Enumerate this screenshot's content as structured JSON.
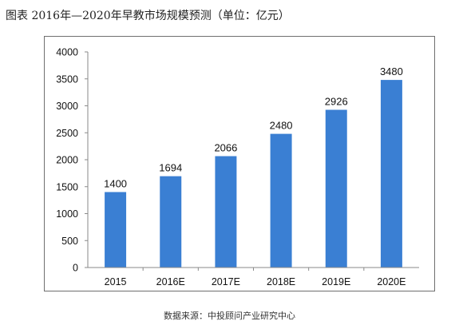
{
  "figure": {
    "title": "图表  2016年—2020年早教市场规模预测（单位：亿元）",
    "source": "数据来源：中投顾问产业研究中心"
  },
  "colors": {
    "bar": "#3a7fd3",
    "axis": "#8a8a8a",
    "text": "#111111"
  },
  "chart_data": {
    "type": "bar",
    "title": "",
    "xlabel": "",
    "ylabel": "",
    "categories": [
      "2015",
      "2016E",
      "2017E",
      "2018E",
      "2019E",
      "2020E"
    ],
    "values": [
      1400,
      1694,
      2066,
      2480,
      2926,
      3480
    ],
    "value_labels": [
      "1400",
      "1694",
      "2066",
      "2480",
      "2926",
      "3480"
    ],
    "ylim": [
      0,
      4000
    ],
    "yticks": [
      0,
      500,
      1000,
      1500,
      2000,
      2500,
      3000,
      3500,
      4000
    ],
    "ytick_labels": [
      "0",
      "500",
      "1000",
      "1500",
      "2000",
      "2500",
      "3000",
      "3500",
      "4000"
    ],
    "grid": false,
    "legend": "none"
  }
}
